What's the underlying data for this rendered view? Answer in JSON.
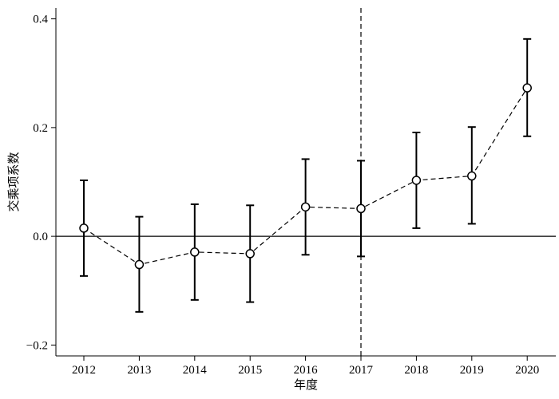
{
  "chart_data": {
    "type": "line",
    "title": "",
    "xlabel": "年度",
    "ylabel": "交乘项系数",
    "categories": [
      "2012",
      "2013",
      "2014",
      "2015",
      "2016",
      "2017",
      "2018",
      "2019",
      "2020"
    ],
    "series": [
      {
        "values": [
          0.015,
          -0.052,
          -0.029,
          -0.032,
          0.054,
          0.051,
          0.103,
          0.111,
          0.273
        ],
        "ci_lower": [
          -0.073,
          -0.139,
          -0.117,
          -0.121,
          -0.034,
          -0.037,
          0.015,
          0.023,
          0.184
        ],
        "ci_upper": [
          0.103,
          0.036,
          0.059,
          0.057,
          0.142,
          0.139,
          0.191,
          0.201,
          0.363
        ]
      }
    ],
    "ylim": [
      -0.22,
      0.42
    ],
    "yticks": [
      -0.2,
      0.0,
      0.2,
      0.4
    ],
    "ytick_labels": [
      "−0.2",
      "0.0",
      "0.2",
      "0.4"
    ],
    "reference_hline": 0.0,
    "reference_vline_category": "2017",
    "grid": false,
    "line_style": "dashed",
    "marker": "open-circle",
    "color": "#000000"
  }
}
